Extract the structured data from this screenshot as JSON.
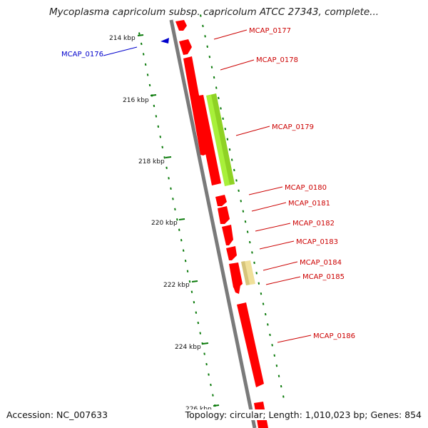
{
  "title": "Mycoplasma capricolum subsp. capricolum ATCC 27343, complete...",
  "footer": {
    "accession": "Accession: NC_007633",
    "summary": "Topology: circular; Length: 1,010,023 bp; Genes: 854"
  },
  "colors": {
    "backbone": "#7a7a7a",
    "feature_red": "#ff0000",
    "feature_green": "#a8f03a",
    "feature_khaki": "#f0e09a",
    "label_red": "#cc0000",
    "label_blue": "#0000cc",
    "tick_green": "#0a7a0a"
  },
  "ruler_labels": [
    "214 kbp",
    "216 kbp",
    "218 kbp",
    "220 kbp",
    "222 kbp",
    "224 kbp",
    "226 kbp"
  ],
  "genes": [
    {
      "name": "MCAP_0176",
      "strand": "reverse"
    },
    {
      "name": "MCAP_0177",
      "strand": "forward"
    },
    {
      "name": "MCAP_0178",
      "strand": "forward"
    },
    {
      "name": "MCAP_0179",
      "strand": "forward"
    },
    {
      "name": "MCAP_0180",
      "strand": "forward"
    },
    {
      "name": "MCAP_0181",
      "strand": "forward"
    },
    {
      "name": "MCAP_0182",
      "strand": "forward"
    },
    {
      "name": "MCAP_0183",
      "strand": "forward"
    },
    {
      "name": "MCAP_0184",
      "strand": "forward"
    },
    {
      "name": "MCAP_0185",
      "strand": "forward"
    },
    {
      "name": "MCAP_0186",
      "strand": "forward"
    }
  ]
}
